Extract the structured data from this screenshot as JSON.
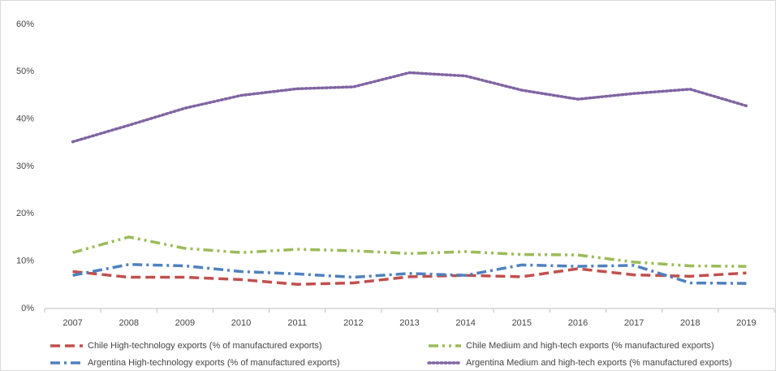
{
  "chart_data": {
    "type": "line",
    "categories": [
      "2007",
      "2008",
      "2009",
      "2010",
      "2011",
      "2012",
      "2013",
      "2014",
      "2015",
      "2016",
      "2017",
      "2018",
      "2019"
    ],
    "series": [
      {
        "name": "Chile High-technology exports (% of manufactured exports)",
        "color": "#c0504d",
        "dash": "dashed",
        "values": [
          7.8,
          6.6,
          6.6,
          6.1,
          5.1,
          5.4,
          6.7,
          7.0,
          6.7,
          8.4,
          7.1,
          6.8,
          7.5
        ]
      },
      {
        "name": "Chile Medium and high-tech exports (% manufactured exports)",
        "color": "#9bbb59",
        "dash": "dash-dot-dot",
        "values": [
          11.8,
          15.1,
          12.7,
          11.8,
          12.5,
          12.2,
          11.6,
          12.0,
          11.4,
          11.3,
          9.8,
          9.0,
          8.9
        ]
      },
      {
        "name": "Argentina High-technology exports (% of manufactured exports)",
        "color": "#4f81bd",
        "dash": "dash-dot",
        "values": [
          7.0,
          9.3,
          9.0,
          7.8,
          7.3,
          6.6,
          7.4,
          7.0,
          9.2,
          8.9,
          9.1,
          5.4,
          5.3
        ]
      },
      {
        "name": "Argentina Medium and high-tech exports (% manufactured exports)",
        "color": "#8064a2",
        "dash": "dotted",
        "values": [
          35.2,
          38.7,
          42.3,
          45.0,
          46.4,
          46.8,
          49.8,
          49.1,
          46.1,
          44.2,
          45.4,
          46.3,
          42.8
        ]
      }
    ],
    "ylim": [
      0,
      60
    ],
    "yticks": [
      {
        "value": 0,
        "label": "0%"
      },
      {
        "value": 10,
        "label": "10%"
      },
      {
        "value": 20,
        "label": "20%"
      },
      {
        "value": 30,
        "label": "30%"
      },
      {
        "value": 40,
        "label": "40%"
      },
      {
        "value": 50,
        "label": "50%"
      },
      {
        "value": 60,
        "label": "60%"
      }
    ],
    "grid": false,
    "legend": "bottom"
  }
}
